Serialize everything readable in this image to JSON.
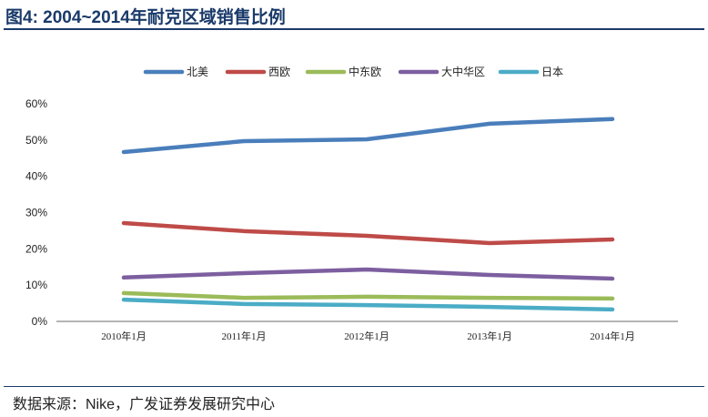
{
  "title": "图4:  2004~2014年耐克区域销售比例",
  "source": "数据来源：Nike，广发证券发展研究中心",
  "chart_data": {
    "type": "line",
    "title": "",
    "xlabel": "",
    "ylabel": "",
    "categories": [
      "2010年1月",
      "2011年1月",
      "2012年1月",
      "2013年1月",
      "2014年1月"
    ],
    "ylim": [
      0,
      60
    ],
    "yticks": [
      "0%",
      "10%",
      "20%",
      "30%",
      "40%",
      "50%",
      "60%"
    ],
    "grid": false,
    "legend": "top",
    "series": [
      {
        "name": "北美",
        "color": "#4a7ebb",
        "values": [
          46.7,
          49.7,
          50.2,
          54.5,
          55.8
        ]
      },
      {
        "name": "西欧",
        "color": "#be4b48",
        "values": [
          27.1,
          24.9,
          23.6,
          21.6,
          22.6
        ]
      },
      {
        "name": "中东欧",
        "color": "#9bbb59",
        "values": [
          7.8,
          6.5,
          6.8,
          6.5,
          6.3
        ]
      },
      {
        "name": "大中华区",
        "color": "#7d5fa0",
        "values": [
          12.1,
          13.3,
          14.3,
          12.8,
          11.8
        ]
      },
      {
        "name": "日本",
        "color": "#4bacc6",
        "values": [
          6.0,
          4.8,
          4.5,
          4.0,
          3.3
        ]
      }
    ]
  }
}
